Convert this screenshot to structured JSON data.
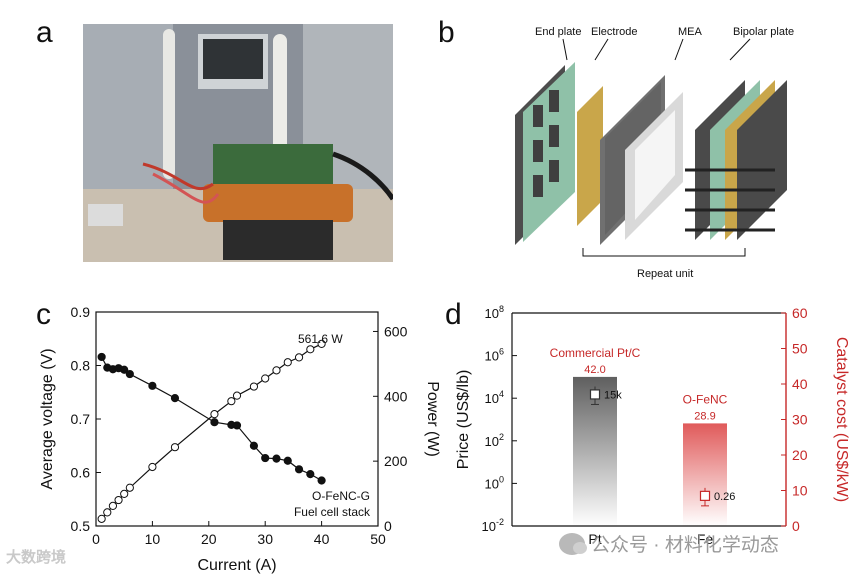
{
  "panels": {
    "a": "a",
    "b": "b",
    "c": "c",
    "d": "d"
  },
  "panel_b": {
    "labels": {
      "end_plate": "End plate",
      "electrode": "Electrode",
      "mea": "MEA",
      "bipolar_plate": "Bipolar plate",
      "repeat_unit": "Repeat unit"
    }
  },
  "chart_data": [
    {
      "type": "line",
      "panel": "c",
      "xlabel": "Current (A)",
      "ylabel_left": "Average voltage (V)",
      "ylabel_right": "Power (W)",
      "xlim": [
        0,
        50
      ],
      "ylim_left": [
        0.5,
        0.9
      ],
      "ylim_right": [
        0,
        660
      ],
      "x_ticks": [
        "0",
        "10",
        "20",
        "30",
        "40",
        "50"
      ],
      "y_left_ticks": [
        "0.5",
        "0.6",
        "0.7",
        "0.8",
        "0.9"
      ],
      "y_right_ticks": [
        "0",
        "200",
        "400",
        "600"
      ],
      "series": [
        {
          "name": "Average voltage",
          "axis": "left",
          "marker": "filled",
          "x": [
            1,
            2,
            3,
            4,
            5,
            6,
            10,
            14,
            21,
            24,
            25,
            28,
            30,
            32,
            34,
            36,
            38,
            40
          ],
          "y": [
            0.816,
            0.796,
            0.793,
            0.795,
            0.792,
            0.784,
            0.762,
            0.739,
            0.694,
            0.689,
            0.688,
            0.65,
            0.627,
            0.626,
            0.622,
            0.606,
            0.597,
            0.585
          ]
        },
        {
          "name": "Power",
          "axis": "right",
          "marker": "open",
          "x": [
            1,
            2,
            3,
            4,
            5,
            6,
            10,
            14,
            21,
            24,
            25,
            28,
            30,
            32,
            34,
            36,
            38,
            40
          ],
          "y": [
            22,
            42,
            62,
            80,
            99,
            118,
            182,
            243,
            345,
            385,
            402,
            430,
            455,
            480,
            505,
            520,
            545,
            561.6
          ]
        }
      ],
      "annotations": {
        "max_power": "561.6 W",
        "sample": "O-FeNC-G",
        "device": "Fuel cell stack"
      }
    },
    {
      "type": "bar",
      "panel": "d",
      "categories": [
        "Pt",
        "Fe"
      ],
      "ylabel_left": "Price (US$/lb)",
      "ylabel_right": "Catalyst cost (US$/kW)",
      "ylim_left_log10": [
        -2,
        8
      ],
      "ylim_right": [
        0,
        60
      ],
      "y_left_ticks": [
        "10^-2",
        "10^0",
        "10^2",
        "10^4",
        "10^6",
        "10^8"
      ],
      "y_right_ticks": [
        "0",
        "10",
        "20",
        "30",
        "40",
        "50",
        "60"
      ],
      "bars": [
        {
          "category": "Pt",
          "name": "Commercial Pt/C",
          "cost": 42.0,
          "cost_label": "42.0",
          "price": 15000,
          "price_label": "15k",
          "color": "#6f6f6f"
        },
        {
          "category": "Fe",
          "name": "O-FeNC",
          "cost": 28.9,
          "cost_label": "28.9",
          "price": 0.26,
          "price_label": "0.26",
          "color": "#e06767"
        }
      ]
    }
  ],
  "watermarks": {
    "left": "大数跨境",
    "right": "公众号 · 材料化学动态"
  }
}
